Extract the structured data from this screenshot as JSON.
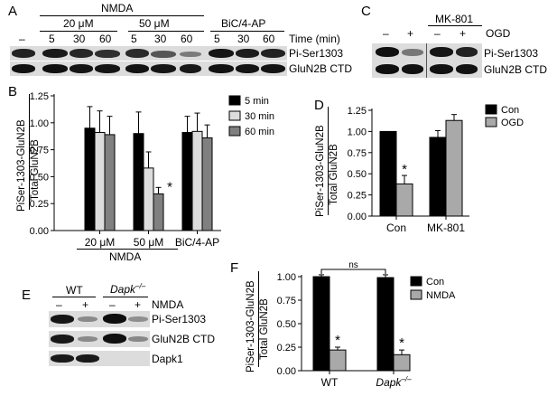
{
  "panels": {
    "A": {
      "letter": "A",
      "header": "NMDA",
      "group_20": "20 μM",
      "group_50": "50 μM",
      "group_bic": "BiC/4-AP",
      "lane_labels": [
        "–",
        "5",
        "30",
        "60",
        "5",
        "30",
        "60",
        "5",
        "30",
        "60"
      ],
      "time_label": "Time (min)",
      "row_labels": [
        "Pi-Ser1303",
        "GluN2B CTD"
      ]
    },
    "B": {
      "letter": "B",
      "ylabel_top": "PiSer-1303-GluN2B",
      "ylabel_bottom": "Total GluN2B",
      "yticks": [
        "0.00",
        "0.25",
        "0.50",
        "0.75",
        "1.00",
        "1.25"
      ],
      "groups": [
        "20 μM",
        "50 μM",
        "BiC/4-AP"
      ],
      "under_label": "NMDA",
      "legend": [
        "5 min",
        "30 min",
        "60 min"
      ],
      "star": "*"
    },
    "C": {
      "letter": "C",
      "header": "MK-801",
      "ogd_label": "OGD",
      "lane_labels": [
        "–",
        "+",
        "–",
        "+"
      ],
      "row_labels": [
        "Pi-Ser1303",
        "GluN2B CTD"
      ]
    },
    "D": {
      "letter": "D",
      "ylabel_top": "PiSer-1303-GluN2B",
      "ylabel_bottom": "Total GluN2B",
      "yticks": [
        "0.00",
        "0.25",
        "0.50",
        "0.75",
        "1.00",
        "1.25"
      ],
      "groups": [
        "Con",
        "MK-801"
      ],
      "legend": [
        "Con",
        "OGD"
      ],
      "star": "*"
    },
    "E": {
      "letter": "E",
      "wt": "WT",
      "dapk": "Dapk",
      "dapk_sup": "–/–",
      "nmda_label": "NMDA",
      "lane_labels": [
        "–",
        "+",
        "–",
        "+"
      ],
      "row_labels": [
        "Pi-Ser1303",
        "GluN2B CTD",
        "Dapk1"
      ]
    },
    "F": {
      "letter": "F",
      "ylabel_top": "PiSer-1303-GluN2B",
      "ylabel_bottom": "Total GluN2B",
      "yticks": [
        "0.00",
        "0.25",
        "0.50",
        "0.75",
        "1.00"
      ],
      "groups": [
        "WT",
        "Dapk"
      ],
      "group_sup": "–/–",
      "legend": [
        "Con",
        "NMDA"
      ],
      "ns": "ns",
      "star": "*"
    }
  },
  "colors": {
    "black": "#000000",
    "light": "#dcdcdc",
    "mid": "#808080",
    "grey": "#a9a9a9"
  },
  "chart_data": [
    {
      "panel": "B",
      "type": "bar",
      "categories": [
        "20 μM",
        "50 μM",
        "BiC/4-AP"
      ],
      "series": [
        {
          "name": "5 min",
          "values": [
            0.95,
            0.9,
            0.91
          ],
          "errors": [
            0.2,
            0.2,
            0.15
          ]
        },
        {
          "name": "30 min",
          "values": [
            0.91,
            0.58,
            0.92
          ],
          "errors": [
            0.2,
            0.15,
            0.17
          ]
        },
        {
          "name": "60 min",
          "values": [
            0.89,
            0.34,
            0.86
          ],
          "errors": [
            0.17,
            0.06,
            0.12
          ]
        }
      ],
      "ylim": [
        0,
        1.25
      ],
      "legend_position": "top-right",
      "annotations": [
        {
          "text": "*",
          "category": "50 μM",
          "series": "60 min"
        }
      ]
    },
    {
      "panel": "D",
      "type": "bar",
      "categories": [
        "Con",
        "MK-801"
      ],
      "series": [
        {
          "name": "Con",
          "values": [
            1.0,
            0.93
          ],
          "errors": [
            0,
            0.08
          ]
        },
        {
          "name": "OGD",
          "values": [
            0.38,
            1.13
          ],
          "errors": [
            0.1,
            0.07
          ]
        }
      ],
      "ylim": [
        0,
        1.25
      ],
      "legend_position": "top-right",
      "annotations": [
        {
          "text": "*",
          "category": "Con",
          "series": "OGD"
        }
      ]
    },
    {
      "panel": "F",
      "type": "bar",
      "categories": [
        "WT",
        "Dapk–/–"
      ],
      "series": [
        {
          "name": "Con",
          "values": [
            1.0,
            0.99
          ],
          "errors": [
            0.02,
            0.03
          ]
        },
        {
          "name": "NMDA",
          "values": [
            0.22,
            0.17
          ],
          "errors": [
            0.03,
            0.05
          ]
        }
      ],
      "ylim": [
        0,
        1.0
      ],
      "legend_position": "top-right",
      "annotations": [
        {
          "text": "*",
          "category": "WT",
          "series": "NMDA"
        },
        {
          "text": "*",
          "category": "Dapk–/–",
          "series": "NMDA"
        },
        {
          "text": "ns",
          "between": [
            "WT Con",
            "Dapk–/– Con"
          ]
        }
      ]
    }
  ]
}
